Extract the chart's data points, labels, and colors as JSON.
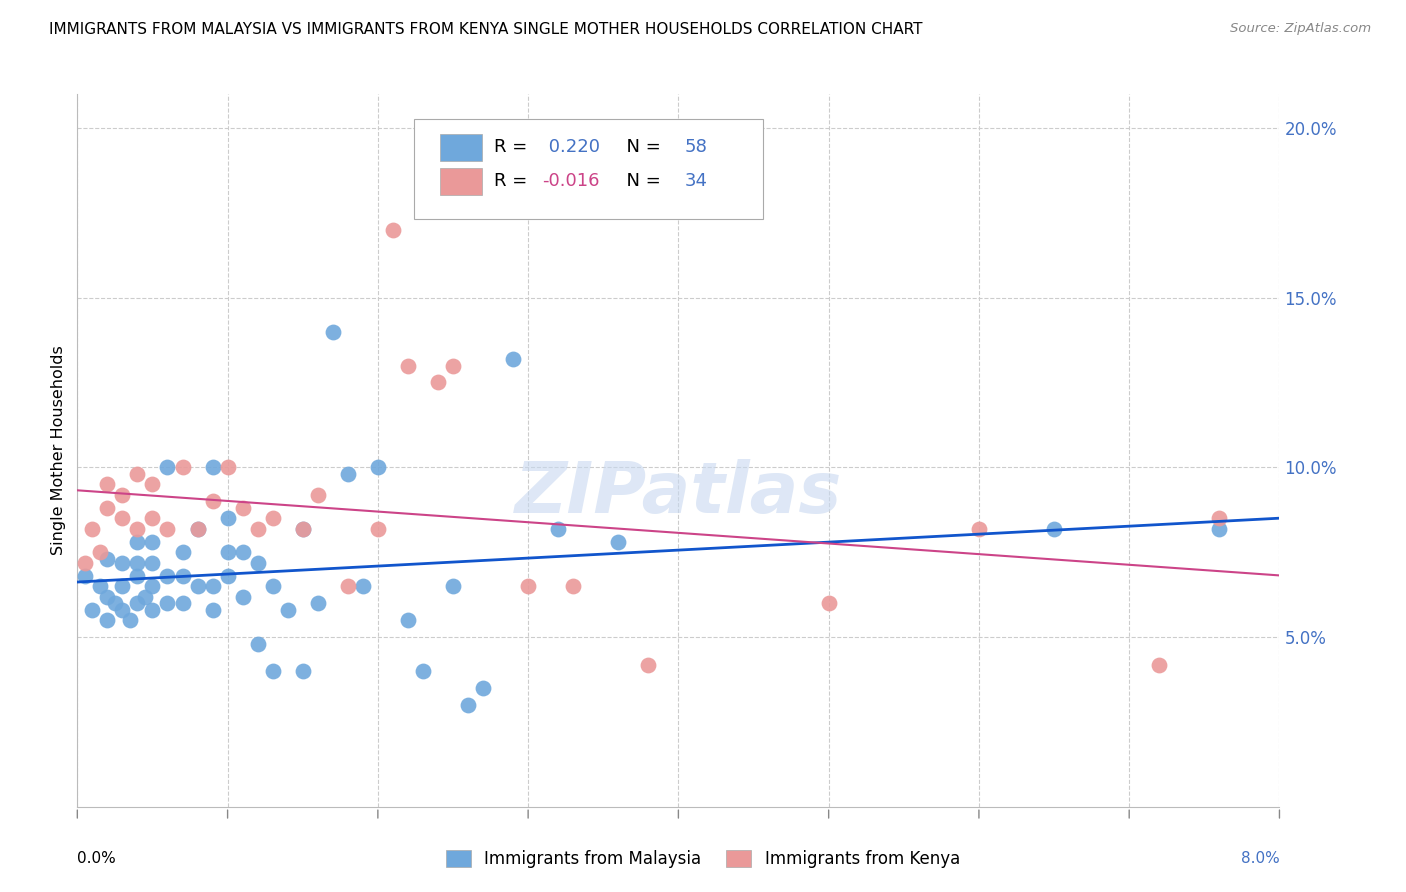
{
  "title": "IMMIGRANTS FROM MALAYSIA VS IMMIGRANTS FROM KENYA SINGLE MOTHER HOUSEHOLDS CORRELATION CHART",
  "source": "Source: ZipAtlas.com",
  "ylabel": "Single Mother Households",
  "malaysia_color": "#6fa8dc",
  "kenya_color": "#ea9999",
  "malaysia_line_color": "#1155cc",
  "kenya_line_color": "#cc4488",
  "watermark_text": "ZIPatlas",
  "xlim": [
    0.0,
    0.08
  ],
  "ylim": [
    0.0,
    0.21
  ],
  "ytick_vals": [
    0.05,
    0.1,
    0.15,
    0.2
  ],
  "ytick_labels": [
    "5.0%",
    "10.0%",
    "15.0%",
    "20.0%"
  ],
  "malaysia_R": 0.22,
  "malaysia_N": 58,
  "kenya_R": -0.016,
  "kenya_N": 34,
  "malaysia_x": [
    0.0005,
    0.001,
    0.0015,
    0.002,
    0.002,
    0.002,
    0.0025,
    0.003,
    0.003,
    0.003,
    0.0035,
    0.004,
    0.004,
    0.004,
    0.004,
    0.0045,
    0.005,
    0.005,
    0.005,
    0.005,
    0.006,
    0.006,
    0.006,
    0.007,
    0.007,
    0.007,
    0.008,
    0.008,
    0.009,
    0.009,
    0.009,
    0.01,
    0.01,
    0.01,
    0.011,
    0.011,
    0.012,
    0.012,
    0.013,
    0.013,
    0.014,
    0.015,
    0.015,
    0.016,
    0.017,
    0.018,
    0.019,
    0.02,
    0.022,
    0.023,
    0.025,
    0.026,
    0.027,
    0.029,
    0.032,
    0.036,
    0.065,
    0.076
  ],
  "malaysia_y": [
    0.068,
    0.058,
    0.065,
    0.055,
    0.062,
    0.073,
    0.06,
    0.058,
    0.065,
    0.072,
    0.055,
    0.06,
    0.068,
    0.072,
    0.078,
    0.062,
    0.058,
    0.065,
    0.072,
    0.078,
    0.06,
    0.068,
    0.1,
    0.06,
    0.068,
    0.075,
    0.065,
    0.082,
    0.058,
    0.065,
    0.1,
    0.068,
    0.075,
    0.085,
    0.062,
    0.075,
    0.048,
    0.072,
    0.04,
    0.065,
    0.058,
    0.04,
    0.082,
    0.06,
    0.14,
    0.098,
    0.065,
    0.1,
    0.055,
    0.04,
    0.065,
    0.03,
    0.035,
    0.132,
    0.082,
    0.078,
    0.082,
    0.082
  ],
  "kenya_x": [
    0.0005,
    0.001,
    0.0015,
    0.002,
    0.002,
    0.003,
    0.003,
    0.004,
    0.004,
    0.005,
    0.005,
    0.006,
    0.007,
    0.008,
    0.009,
    0.01,
    0.011,
    0.012,
    0.013,
    0.015,
    0.016,
    0.018,
    0.02,
    0.021,
    0.022,
    0.024,
    0.025,
    0.03,
    0.033,
    0.038,
    0.05,
    0.06,
    0.072,
    0.076
  ],
  "kenya_y": [
    0.072,
    0.082,
    0.075,
    0.088,
    0.095,
    0.085,
    0.092,
    0.082,
    0.098,
    0.085,
    0.095,
    0.082,
    0.1,
    0.082,
    0.09,
    0.1,
    0.088,
    0.082,
    0.085,
    0.082,
    0.092,
    0.065,
    0.082,
    0.17,
    0.13,
    0.125,
    0.13,
    0.065,
    0.065,
    0.042,
    0.06,
    0.082,
    0.042,
    0.085
  ]
}
